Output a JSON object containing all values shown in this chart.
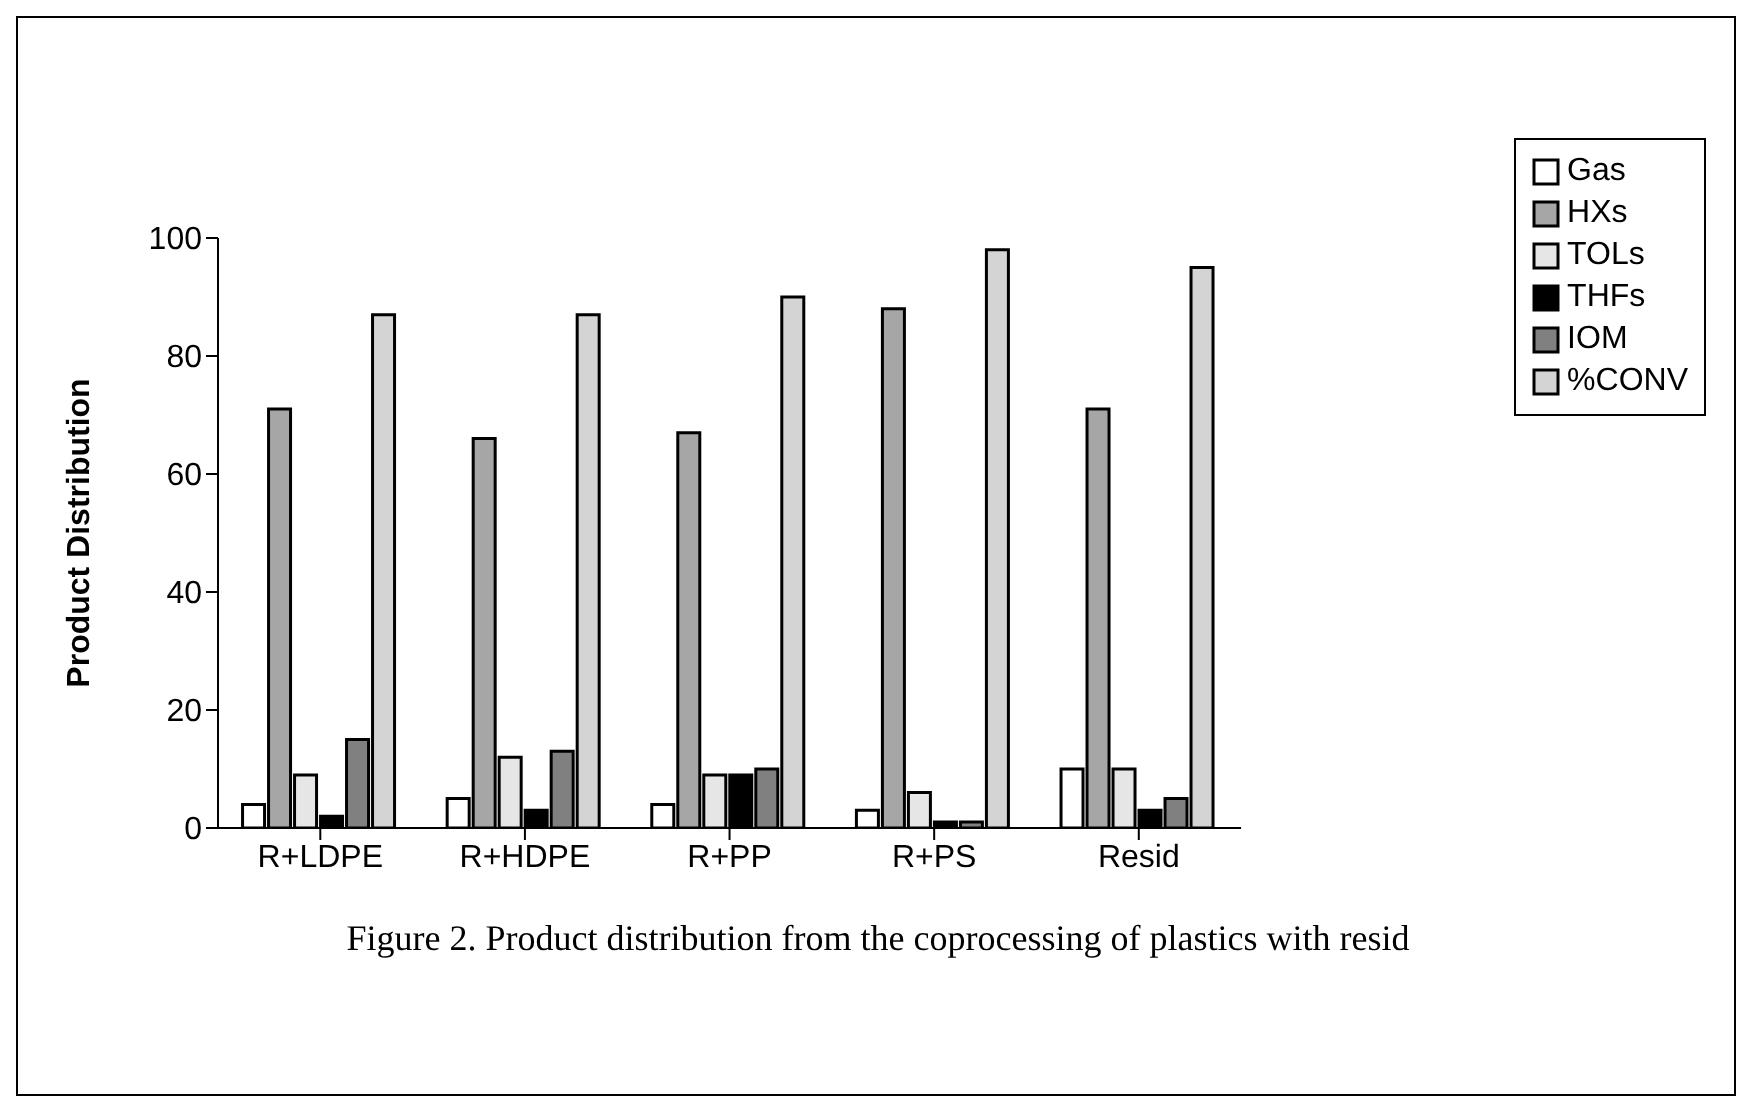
{
  "chart_data": {
    "type": "bar",
    "title": "Figure 2. Product distribution from the coprocessing of plastics with resid",
    "ylabel": "Product Distribution",
    "categories": [
      "R+LDPE",
      "R+HDPE",
      "R+PP",
      "R+PS",
      "Resid"
    ],
    "series": [
      {
        "name": "Gas",
        "color": "#ffffff",
        "values": [
          4,
          5,
          4,
          3,
          10
        ]
      },
      {
        "name": "HXs",
        "color": "#a6a6a6",
        "values": [
          71,
          66,
          67,
          88,
          71
        ]
      },
      {
        "name": "TOLs",
        "color": "#e6e6e6",
        "values": [
          9,
          12,
          9,
          6,
          10
        ]
      },
      {
        "name": "THFs",
        "color": "#000000",
        "values": [
          2,
          3,
          9,
          1,
          3
        ]
      },
      {
        "name": "IOM",
        "color": "#808080",
        "values": [
          15,
          13,
          10,
          1,
          5
        ]
      },
      {
        "name": "%CONV",
        "color": "#d4d4d4",
        "values": [
          87,
          87,
          90,
          98,
          95
        ]
      }
    ],
    "ylim": [
      0,
      100
    ],
    "yticks": [
      0,
      20,
      40,
      60,
      80,
      100
    ],
    "grid": false,
    "legend": "right"
  }
}
